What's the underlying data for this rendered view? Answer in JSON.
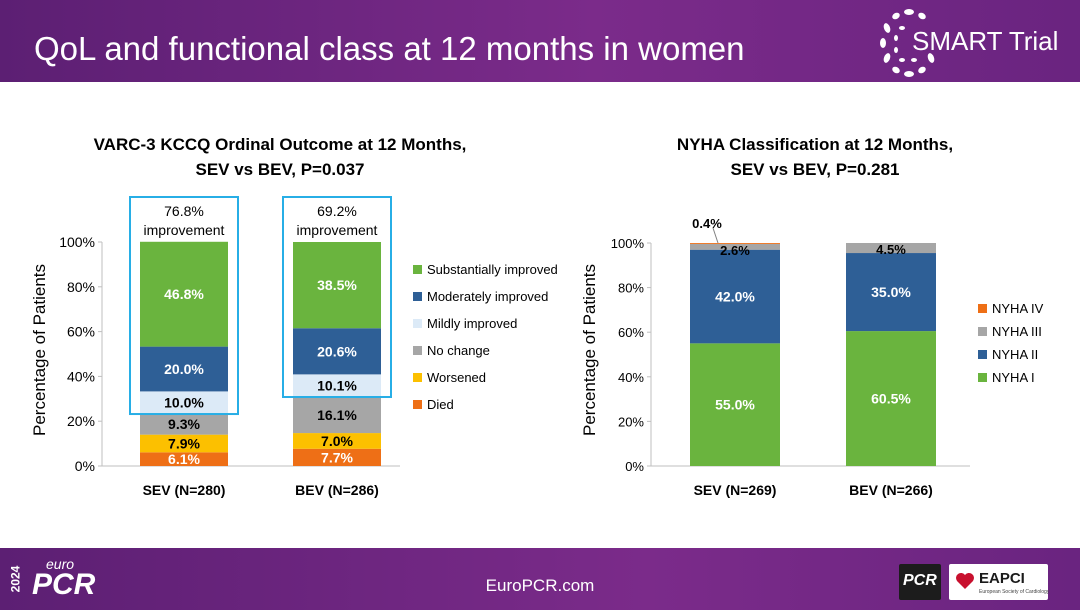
{
  "header": {
    "title": "QoL and functional class at 12 months in women",
    "trial_name": "SMART Trial"
  },
  "footer": {
    "url": "EuroPCR.com",
    "event_year": "2024",
    "event_small": "euro",
    "event_big": "PCR",
    "logo_pcr": "PCR",
    "logo_eapci": "EAPCI",
    "logo_eapci_sub": "European Society of Cardiology"
  },
  "colors": {
    "header_bg": "#6a2480",
    "substantially_improved": "#6ab43e",
    "moderately_improved": "#2e5f96",
    "mildly_improved": "#dceaf7",
    "no_change": "#a6a6a6",
    "worsened": "#fcc000",
    "died": "#ee6f16",
    "nyha_iv": "#ee6f16",
    "nyha_iii": "#a6a6a6",
    "nyha_ii": "#2e5f96",
    "nyha_i": "#6ab43e",
    "highlight_box": "#27aee6"
  },
  "chart_data": [
    {
      "type": "bar",
      "stacked": true,
      "title": "VARC-3 KCCQ Ordinal Outcome at 12 Months,",
      "subtitle": "SEV vs BEV, P=0.037",
      "ylabel": "Percentage of Patients",
      "xlabel": "",
      "ylim": [
        0,
        100
      ],
      "yticks": [
        "0%",
        "20%",
        "40%",
        "60%",
        "80%",
        "100%"
      ],
      "categories": [
        "SEV (N=280)",
        "BEV (N=286)"
      ],
      "series": [
        {
          "name": "Died",
          "values": [
            6.1,
            7.7
          ],
          "labels": [
            "6.1%",
            "7.7%"
          ]
        },
        {
          "name": "Worsened",
          "values": [
            7.9,
            7.0
          ],
          "labels": [
            "7.9%",
            "7.0%"
          ]
        },
        {
          "name": "No change",
          "values": [
            9.3,
            16.1
          ],
          "labels": [
            "9.3%",
            "16.1%"
          ]
        },
        {
          "name": "Mildly improved",
          "values": [
            10.0,
            10.1
          ],
          "labels": [
            "10.0%",
            "10.1%"
          ]
        },
        {
          "name": "Moderately improved",
          "values": [
            20.0,
            20.6
          ],
          "labels": [
            "20.0%",
            "20.6%"
          ]
        },
        {
          "name": "Substantially improved",
          "values": [
            46.8,
            38.5
          ],
          "labels": [
            "46.8%",
            "38.5%"
          ]
        }
      ],
      "legend_order": [
        "Substantially improved",
        "Moderately improved",
        "Mildly improved",
        "No change",
        "Worsened",
        "Died"
      ],
      "legend_position": "right",
      "annotations": [
        {
          "line1": "76.8%",
          "line2": "improvement"
        },
        {
          "line1": "69.2%",
          "line2": "improvement"
        }
      ]
    },
    {
      "type": "bar",
      "stacked": true,
      "title": "NYHA Classification at 12 Months,",
      "subtitle": "SEV vs BEV, P=0.281",
      "ylabel": "Percentage of Patients",
      "xlabel": "",
      "ylim": [
        0,
        100
      ],
      "yticks": [
        "0%",
        "20%",
        "40%",
        "60%",
        "80%",
        "100%"
      ],
      "categories": [
        "SEV (N=269)",
        "BEV (N=266)"
      ],
      "series": [
        {
          "name": "NYHA I",
          "values": [
            55.0,
            60.5
          ],
          "labels": [
            "55.0%",
            "60.5%"
          ]
        },
        {
          "name": "NYHA II",
          "values": [
            42.0,
            35.0
          ],
          "labels": [
            "42.0%",
            "35.0%"
          ]
        },
        {
          "name": "NYHA III",
          "values": [
            2.6,
            4.5
          ],
          "labels": [
            "2.6%",
            "4.5%"
          ]
        },
        {
          "name": "NYHA IV",
          "values": [
            0.4,
            0.0
          ],
          "labels": [
            "0.4%",
            ""
          ]
        }
      ],
      "legend_order": [
        "NYHA IV",
        "NYHA III",
        "NYHA II",
        "NYHA I"
      ],
      "legend_position": "right"
    }
  ]
}
